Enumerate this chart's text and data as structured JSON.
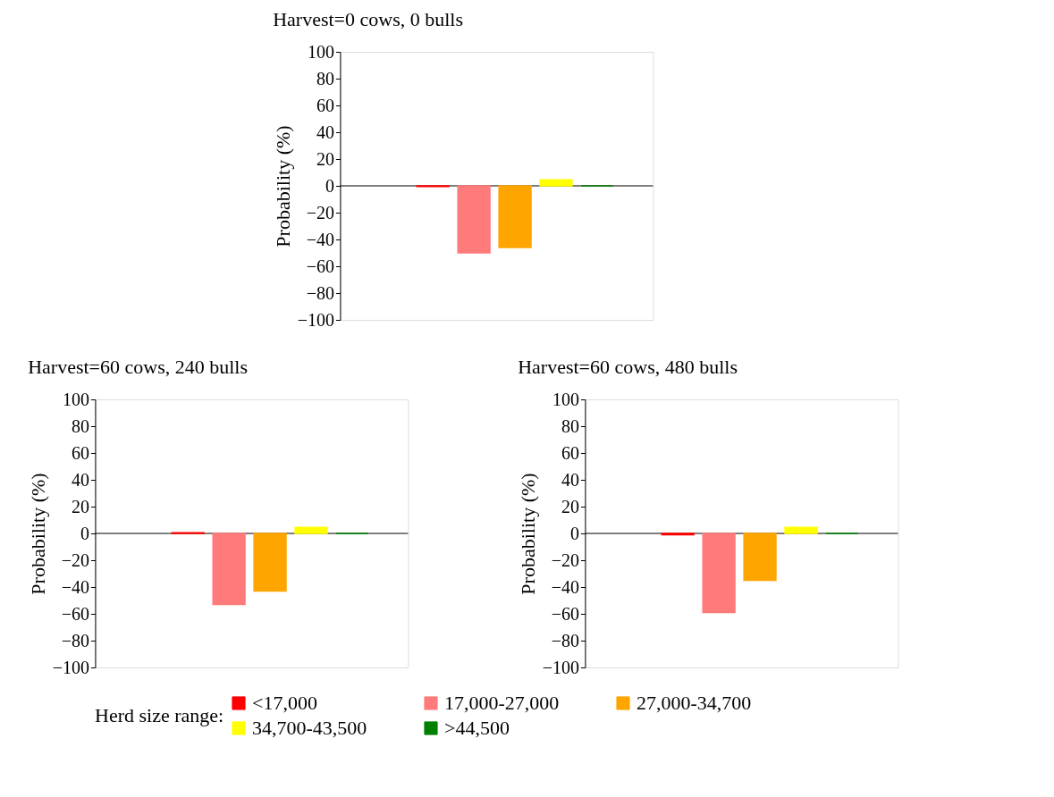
{
  "chart_data": [
    {
      "type": "bar",
      "title": "Harvest=0 cows, 0 bulls",
      "ylabel": "Probability (%)",
      "categories": [
        null
      ],
      "ylim": [
        -100,
        100
      ],
      "yticks": [
        -100,
        -80,
        -60,
        -40,
        -20,
        0,
        20,
        40,
        60,
        80,
        100
      ],
      "tick_labels": "y",
      "legend": "bottom",
      "legend_title": "Herd size range:",
      "series": [
        {
          "name": "<17,000",
          "color": "#ff0000",
          "values": [
            -0.5
          ]
        },
        {
          "name": "17,000-27,000",
          "color": "#ff7a7a",
          "values": [
            -50
          ]
        },
        {
          "name": "27,000-34,700",
          "color": "#ffa500",
          "values": [
            -46
          ]
        },
        {
          "name": "34,700-43,500",
          "color": "#ffff00",
          "values": [
            4.5
          ]
        },
        {
          "name": ">44,500",
          "color": "#008000",
          "values": [
            0
          ]
        }
      ]
    },
    {
      "type": "bar",
      "title": "Harvest=60 cows, 240 bulls",
      "ylabel": "Probability (%)",
      "categories": [
        null
      ],
      "ylim": [
        -100,
        100
      ],
      "yticks": [
        -100,
        -80,
        -60,
        -40,
        -20,
        0,
        20,
        40,
        60,
        80,
        100
      ],
      "tick_labels": "y",
      "legend": "bottom",
      "series": [
        {
          "name": "<17,000",
          "color": "#ff0000",
          "values": [
            0.5
          ]
        },
        {
          "name": "17,000-27,000",
          "color": "#ff7a7a",
          "values": [
            -53
          ]
        },
        {
          "name": "27,000-34,700",
          "color": "#ffa500",
          "values": [
            -43
          ]
        },
        {
          "name": "34,700-43,500",
          "color": "#ffff00",
          "values": [
            4.5
          ]
        },
        {
          "name": ">44,500",
          "color": "#008000",
          "values": [
            0
          ]
        }
      ]
    },
    {
      "type": "bar",
      "title": "Harvest=60 cows, 480 bulls",
      "ylabel": "Probability (%)",
      "categories": [
        null
      ],
      "ylim": [
        -100,
        100
      ],
      "yticks": [
        -100,
        -80,
        -60,
        -40,
        -20,
        0,
        20,
        40,
        60,
        80,
        100
      ],
      "tick_labels": "y",
      "legend": "bottom",
      "series": [
        {
          "name": "<17,000",
          "color": "#ff0000",
          "values": [
            -1
          ]
        },
        {
          "name": "17,000-27,000",
          "color": "#ff7a7a",
          "values": [
            -59
          ]
        },
        {
          "name": "27,000-34,700",
          "color": "#ffa500",
          "values": [
            -35
          ]
        },
        {
          "name": "34,700-43,500",
          "color": "#ffff00",
          "values": [
            4.5
          ]
        },
        {
          "name": ">44,500",
          "color": "#008000",
          "values": [
            0
          ]
        }
      ]
    }
  ]
}
